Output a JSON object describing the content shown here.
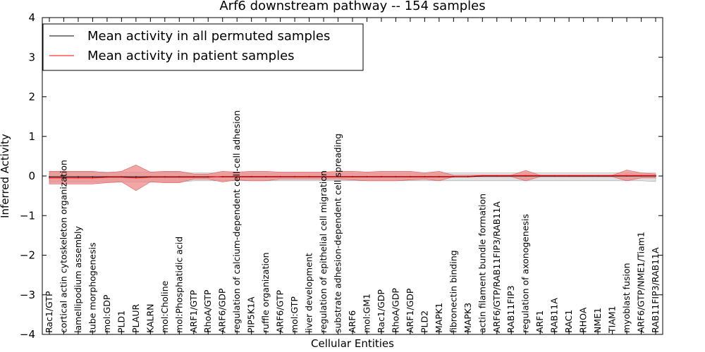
{
  "chart_data": {
    "type": "line",
    "title": "Arf6 downstream pathway -- 154 samples",
    "xlabel": "Cellular Entities",
    "ylabel": "Inferred Activity",
    "ylim": [
      -4,
      4
    ],
    "yticks": [
      4,
      3,
      2,
      1,
      0,
      -1,
      -2,
      -3,
      -4
    ],
    "ytick_labels": [
      "4",
      "3",
      "2",
      "1",
      "0",
      "−1",
      "−2",
      "−3",
      "−4"
    ],
    "legend_location": "upper-left",
    "categories": [
      "Rac1/GTP",
      "cortical actin cytoskeleton organization",
      "lamellipodium assembly",
      "tube morphogenesis",
      "mol:GDP",
      "PLD1",
      "PLAUR",
      "KALRN",
      "mol:Choline",
      "mol:Phosphatidic acid",
      "ARF1/GTP",
      "RhoA/GTP",
      "ARF6/GDP",
      "regulation of calcium-dependent cell-cell adhesion",
      "PIP5K1A",
      "ruffle organization",
      "ARF6/GTP",
      "mol:GTP",
      "liver development",
      "regulation of epithelial cell migration",
      "substrate adhesion-dependent cell spreading",
      "ARF6",
      "mol:GM1",
      "Rac1/GDP",
      "RhoA/GDP",
      "ARF1/GDP",
      "PLD2",
      "MAPK1",
      "fibronectin binding",
      "MAPK3",
      "actin filament bundle formation",
      "ARF6/GTP/RAB11FIP3/RAB11A",
      "RAB11FIP3",
      "regulation of axonogenesis",
      "ARF1",
      "RAB11A",
      "RAC1",
      "RHOA",
      "NME1",
      "TIAM1",
      "myoblast fusion",
      "ARF6/GTP/NME1/Tiam1",
      "RAB11FIP3/RAB11A"
    ],
    "series": [
      {
        "name": "Mean activity in all permuted samples",
        "color": "#000000",
        "band_color": "#cccccc",
        "values": [
          -0.02,
          -0.02,
          -0.02,
          -0.02,
          -0.02,
          -0.02,
          -0.02,
          -0.02,
          -0.02,
          -0.02,
          -0.02,
          -0.02,
          -0.02,
          -0.02,
          -0.02,
          -0.02,
          -0.02,
          -0.02,
          -0.02,
          -0.02,
          -0.02,
          -0.02,
          -0.02,
          -0.02,
          -0.02,
          -0.02,
          -0.02,
          -0.02,
          -0.02,
          -0.02,
          0.0,
          0.0,
          0.0,
          0.0,
          0.0,
          0.0,
          0.0,
          0.0,
          0.0,
          0.0,
          0.0,
          0.0,
          0.0
        ],
        "lower": [
          -0.15,
          -0.15,
          -0.15,
          -0.15,
          -0.15,
          -0.15,
          -0.15,
          -0.15,
          -0.15,
          -0.15,
          -0.12,
          -0.12,
          -0.12,
          -0.12,
          -0.12,
          -0.12,
          -0.12,
          -0.12,
          -0.12,
          -0.12,
          -0.12,
          -0.12,
          -0.12,
          -0.12,
          -0.12,
          -0.12,
          -0.12,
          -0.12,
          -0.12,
          -0.12,
          -0.12,
          -0.12,
          -0.12,
          -0.12,
          -0.12,
          -0.12,
          -0.12,
          -0.12,
          -0.12,
          -0.12,
          -0.12,
          -0.12,
          -0.14
        ],
        "upper": [
          0.1,
          0.1,
          0.1,
          0.1,
          0.1,
          0.1,
          0.1,
          0.1,
          0.1,
          0.1,
          0.08,
          0.08,
          0.08,
          0.08,
          0.08,
          0.08,
          0.08,
          0.08,
          0.08,
          0.08,
          0.08,
          0.08,
          0.08,
          0.08,
          0.08,
          0.08,
          0.08,
          0.08,
          0.08,
          0.08,
          0.08,
          0.08,
          0.08,
          0.08,
          0.08,
          0.08,
          0.08,
          0.08,
          0.08,
          0.08,
          0.08,
          0.08,
          0.08
        ]
      },
      {
        "name": "Mean activity in patient samples",
        "color": "#ff0000",
        "band_color": "#ee8888",
        "values": [
          -0.05,
          -0.05,
          -0.05,
          -0.05,
          -0.03,
          -0.03,
          -0.05,
          -0.03,
          -0.03,
          -0.03,
          -0.03,
          -0.03,
          -0.01,
          -0.01,
          -0.01,
          -0.01,
          -0.01,
          -0.01,
          -0.01,
          -0.01,
          -0.01,
          -0.01,
          -0.01,
          -0.01,
          -0.01,
          -0.01,
          -0.01,
          -0.01,
          -0.01,
          -0.01,
          0.01,
          0.01,
          0.01,
          0.01,
          0.01,
          0.01,
          0.01,
          0.01,
          0.01,
          0.01,
          0.01,
          0.01,
          0.01
        ],
        "lower": [
          -0.2,
          -0.2,
          -0.2,
          -0.2,
          -0.17,
          -0.15,
          -0.37,
          -0.15,
          -0.17,
          -0.17,
          -0.08,
          -0.08,
          -0.15,
          -0.1,
          -0.12,
          -0.12,
          -0.08,
          -0.08,
          -0.08,
          -0.08,
          -0.08,
          -0.1,
          -0.12,
          -0.12,
          -0.12,
          -0.1,
          -0.08,
          -0.12,
          -0.02,
          -0.02,
          -0.02,
          -0.02,
          -0.02,
          -0.12,
          -0.02,
          -0.02,
          -0.02,
          -0.02,
          -0.02,
          -0.02,
          -0.12,
          -0.05,
          -0.05
        ],
        "upper": [
          0.12,
          0.12,
          0.12,
          0.12,
          0.08,
          0.12,
          0.28,
          0.1,
          0.12,
          0.12,
          0.05,
          0.05,
          0.12,
          0.1,
          0.12,
          0.12,
          0.1,
          0.1,
          0.1,
          0.1,
          0.12,
          0.12,
          0.1,
          0.12,
          0.12,
          0.12,
          0.08,
          0.12,
          0.02,
          0.02,
          0.02,
          0.02,
          0.02,
          0.14,
          0.02,
          0.02,
          0.02,
          0.02,
          0.02,
          0.02,
          0.15,
          0.08,
          0.05
        ]
      }
    ]
  }
}
